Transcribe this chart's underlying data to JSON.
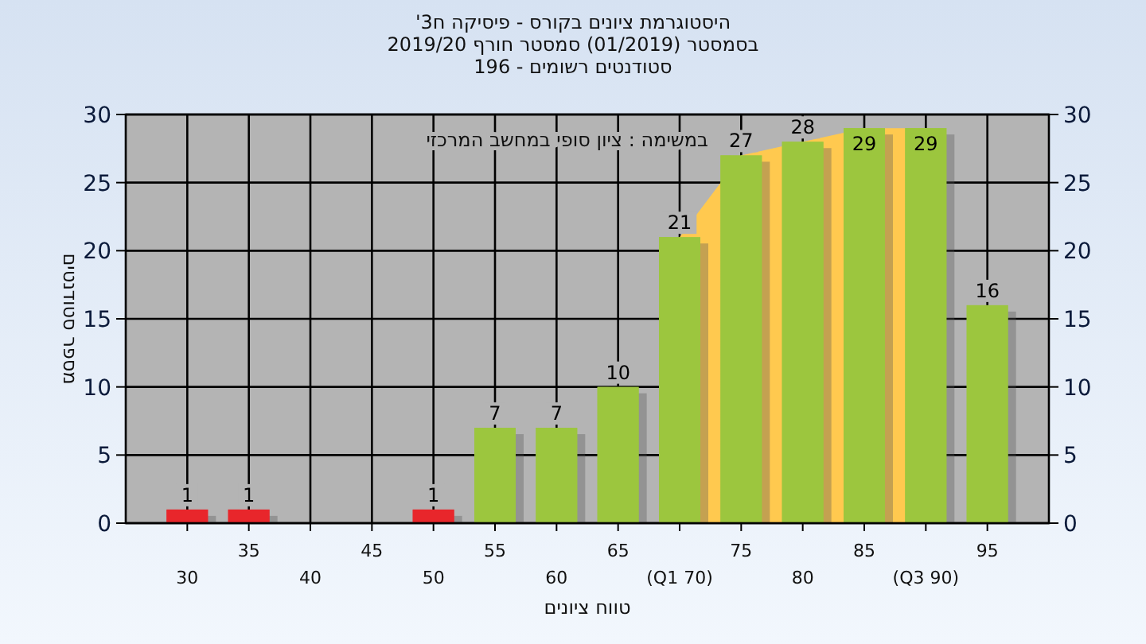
{
  "chart_data": {
    "type": "bar",
    "title": "היסטוגרמת ציונים בקורס - פיסיקה ח3'\nבסמסטר (01/2019) סמסטר חורף 2019/20\nסטודנטים רשומים - 196",
    "xlabel": "טווח ציונים",
    "ylabel": "מספר סטודנטים",
    "annotations": [
      "במשימה : ציון סופי במחשב המרכזי"
    ],
    "categories": [
      "30",
      "35",
      "40",
      "45",
      "50",
      "55",
      "60",
      "65",
      "(Q1 70)",
      "75",
      "80",
      "85",
      "(Q3 90)",
      "95"
    ],
    "series": [
      {
        "type": "area",
        "color": "#ffc94f",
        "values": [
          null,
          null,
          null,
          null,
          null,
          null,
          null,
          null,
          21,
          27,
          28,
          29,
          29,
          null
        ]
      },
      {
        "type": "bar",
        "colors": [
          "#e8262b",
          "#e8262b",
          "#e8262b",
          "#e8262b",
          "#e8262b",
          "#9cc63e",
          "#9cc63e",
          "#9cc63e",
          "#9cc63e",
          "#9cc63e",
          "#9cc63e",
          "#9cc63e",
          "#9cc63e",
          "#9cc63e"
        ],
        "values": [
          1,
          1,
          0,
          0,
          1,
          7,
          7,
          10,
          21,
          27,
          28,
          29,
          29,
          16
        ],
        "value_labels": [
          "1",
          "1",
          null,
          null,
          "1",
          "7",
          "7",
          "10",
          "21",
          "27",
          "28",
          "29",
          "29",
          "16"
        ]
      }
    ],
    "ylim": [
      0,
      30
    ],
    "yticks": [
      0,
      5,
      10,
      15,
      20,
      25,
      30
    ],
    "y2lim": [
      0,
      30
    ],
    "y2ticks": [
      0,
      5,
      10,
      15,
      20,
      25,
      30
    ],
    "grid": true
  }
}
